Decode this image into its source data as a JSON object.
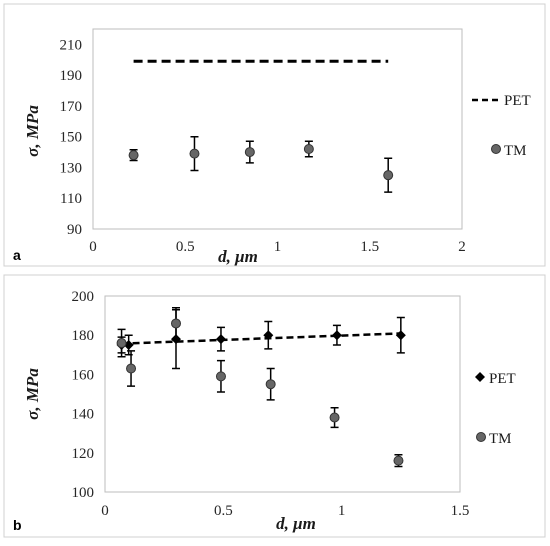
{
  "chart_data": [
    {
      "type": "scatter",
      "panel_label": "a",
      "xlabel": "d, μm",
      "ylabel": "σ, MPa",
      "xlim": [
        0,
        2
      ],
      "ylim": [
        90,
        220
      ],
      "xticks": [
        0,
        0.5,
        1,
        1.5,
        2
      ],
      "xtick_labels": [
        "0",
        "0.5",
        "1",
        "1.5",
        "2"
      ],
      "yticks": [
        90,
        110,
        130,
        150,
        170,
        190,
        210
      ],
      "ytick_labels": [
        "90",
        "110",
        "130",
        "150",
        "170",
        "190",
        "210"
      ],
      "grid": false,
      "legend_position": "right",
      "series": [
        {
          "name": "PET",
          "style": "dashed-line",
          "color": "#000000",
          "x": [
            0.22,
            1.6
          ],
          "y": [
            199,
            199
          ]
        },
        {
          "name": "TM",
          "style": "circle-markers",
          "color": "#666666",
          "x": [
            0.22,
            0.55,
            0.85,
            1.17,
            1.6
          ],
          "y": [
            138,
            139,
            140,
            142,
            125
          ],
          "err": [
            3.5,
            11,
            7,
            5,
            11
          ]
        }
      ]
    },
    {
      "type": "scatter",
      "panel_label": "b",
      "xlabel": "d, μm",
      "ylabel": "σ, MPa",
      "xlim": [
        0,
        1.5
      ],
      "ylim": [
        100,
        200
      ],
      "xticks": [
        0,
        0.5,
        1,
        1.5
      ],
      "xtick_labels": [
        "0",
        "0.5",
        "1",
        "1.5"
      ],
      "yticks": [
        100,
        120,
        140,
        160,
        180,
        200
      ],
      "ytick_labels": [
        "100",
        "120",
        "140",
        "160",
        "180",
        "200"
      ],
      "grid": false,
      "legend_position": "right",
      "trendline": {
        "series": "PET",
        "style": "dashed-line",
        "color": "#000000",
        "x": [
          0.07,
          1.25
        ],
        "y": [
          175.7,
          180.9
        ]
      },
      "series": [
        {
          "name": "PET",
          "style": "diamond-markers",
          "color": "#000000",
          "x": [
            0.07,
            0.1,
            0.3,
            0.49,
            0.69,
            0.98,
            1.25
          ],
          "y": [
            175,
            175,
            178,
            178,
            180,
            180,
            180
          ],
          "err": [
            4,
            5,
            15,
            6,
            7,
            5,
            9
          ]
        },
        {
          "name": "TM",
          "style": "circle-markers",
          "color": "#666666",
          "x": [
            0.07,
            0.11,
            0.3,
            0.49,
            0.7,
            0.97,
            1.24
          ],
          "y": [
            176,
            163,
            186,
            159,
            155,
            138,
            116
          ],
          "err": [
            7,
            9,
            8,
            8,
            8,
            5,
            3
          ]
        }
      ]
    }
  ]
}
